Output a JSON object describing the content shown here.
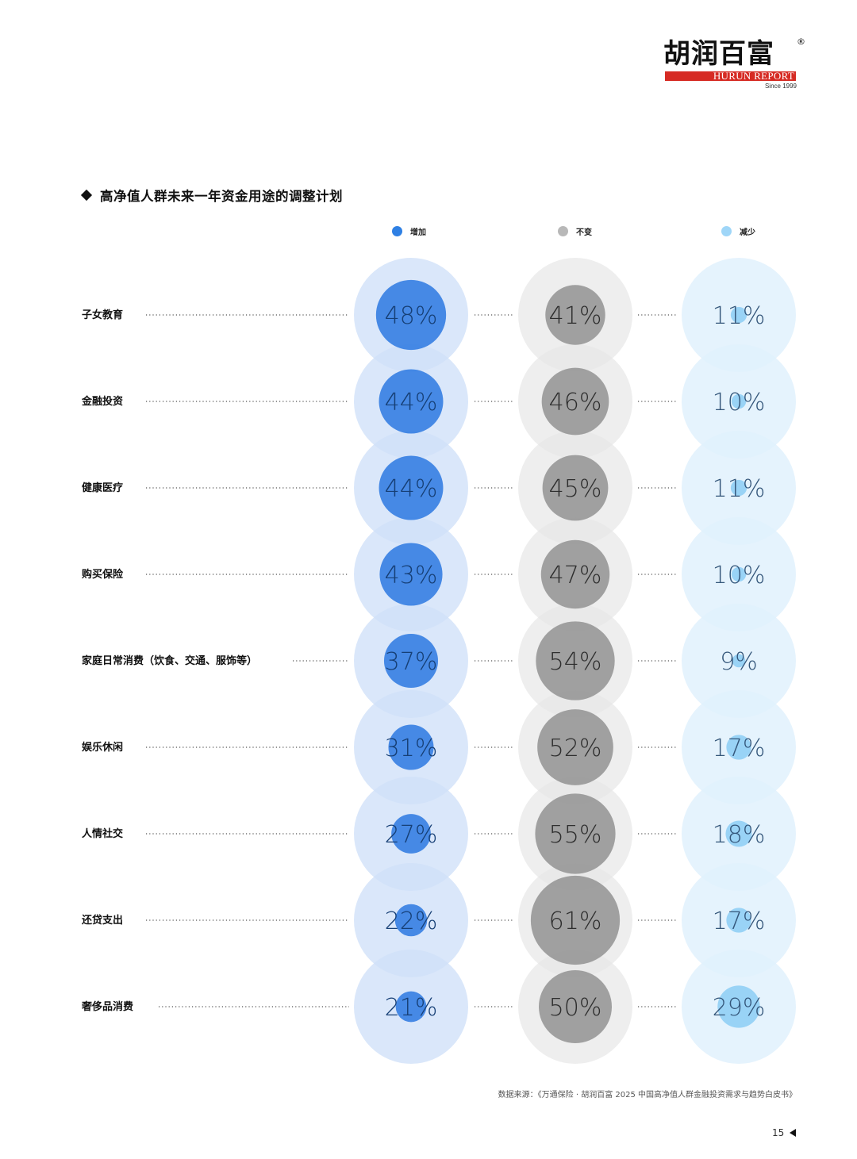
{
  "logo": {
    "cn": "胡润百富",
    "registered": "®",
    "en": "HURUN REPORT",
    "since": "Since 1999"
  },
  "title": "高净值人群未来一年资金用途的调整计划",
  "colors": {
    "increase_light": "#cfe0f8",
    "increase_dark": "#2474e1",
    "same_light": "#e7e7e7",
    "same_dark": "#8a8a8a",
    "decrease_light": "#e1f1fd",
    "decrease_dark": "#8cccf4"
  },
  "chart_data": {
    "type": "bubble",
    "title": "高净值人群未来一年资金用途的调整计划",
    "series": [
      {
        "name": "增加",
        "values": [
          48,
          44,
          44,
          43,
          37,
          31,
          27,
          22,
          21
        ]
      },
      {
        "name": "不变",
        "values": [
          41,
          46,
          45,
          47,
          54,
          52,
          55,
          61,
          50
        ]
      },
      {
        "name": "减少",
        "values": [
          11,
          10,
          11,
          10,
          9,
          17,
          18,
          17,
          29
        ]
      }
    ],
    "categories": [
      "子女教育",
      "金融投资",
      "健康医疗",
      "购买保险",
      "家庭日常消费（饮食、交通、服饰等）",
      "娱乐休闲",
      "人情社交",
      "还贷支出",
      "奢侈品消费"
    ],
    "unit": "%",
    "legend": [
      "增加",
      "不变",
      "减少"
    ]
  },
  "footer": {
    "source": "数据来源：《万通保险 · 胡润百富 2025 中国高净值人群金融投资需求与趋势白皮书》",
    "page": "15"
  }
}
